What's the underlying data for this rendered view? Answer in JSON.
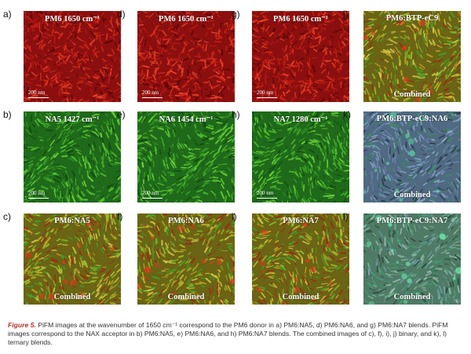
{
  "figure": {
    "panels": [
      {
        "id": "a",
        "label": "a)",
        "title": "PM6 1650 cm⁻¹",
        "scale": "200 nm",
        "combined": "",
        "scheme": "red"
      },
      {
        "id": "b",
        "label": "b)",
        "title": "NA5  1427 cm⁻¹",
        "scale": "200 nm",
        "combined": "",
        "scheme": "green"
      },
      {
        "id": "c",
        "label": "c)",
        "title": "PM6:NA5",
        "scale": "",
        "combined": "Combined",
        "scheme": "mix"
      },
      {
        "id": "d",
        "label": "d)",
        "title": "PM6 1650 cm⁻¹",
        "scale": "200 nm",
        "combined": "",
        "scheme": "red"
      },
      {
        "id": "e",
        "label": "e)",
        "title": "NA6 1454 cm⁻¹",
        "scale": "200 nm",
        "combined": "",
        "scheme": "green"
      },
      {
        "id": "f",
        "label": "f)",
        "title": "PM6:NA6",
        "scale": "",
        "combined": "Combined",
        "scheme": "mix"
      },
      {
        "id": "g",
        "label": "g)",
        "title": "PM6 1650 cm⁻¹",
        "scale": "200 nm",
        "combined": "",
        "scheme": "red"
      },
      {
        "id": "h",
        "label": "h)",
        "title": "NA7 1280 cm⁻¹",
        "scale": "200 nm",
        "combined": "",
        "scheme": "green"
      },
      {
        "id": "i",
        "label": "i)",
        "title": "PM6:NA7",
        "scale": "",
        "combined": "Combined",
        "scheme": "mix"
      },
      {
        "id": "j",
        "label": "j)",
        "title": "PM6:BTP-eC9",
        "scale": "",
        "combined": "Combined",
        "scheme": "mix"
      },
      {
        "id": "k",
        "label": "k)",
        "title": "PM6:BTP-eC9:NA6",
        "scale": "",
        "combined": "Combined",
        "scheme": "blue"
      },
      {
        "id": "l",
        "label": "l)",
        "title": "PM6:BTP-eC9:NA7",
        "scale": "",
        "combined": "Combined",
        "scheme": "teal"
      }
    ],
    "colors": {
      "red": "#b01818",
      "green": "#3da02a",
      "mix": "#8a8a20",
      "blue": "#5f7fa0",
      "teal": "#5a9a78"
    }
  },
  "caption": {
    "label": "Figure 5.",
    "text": " PiFM images at the wavenumber of 1650 cm⁻¹ correspond to the PM6 donor in a) PM6:NA5, d) PM6:NA6, and g) PM6:NA7 blends. PiFM images correspond to the NAX acceptor in b) PM6:NA5, e) PM6:NA6, and h) PM6:NA7 blends. The combined images of c), f), i), j) binary, and k), l) ternary blends."
  }
}
